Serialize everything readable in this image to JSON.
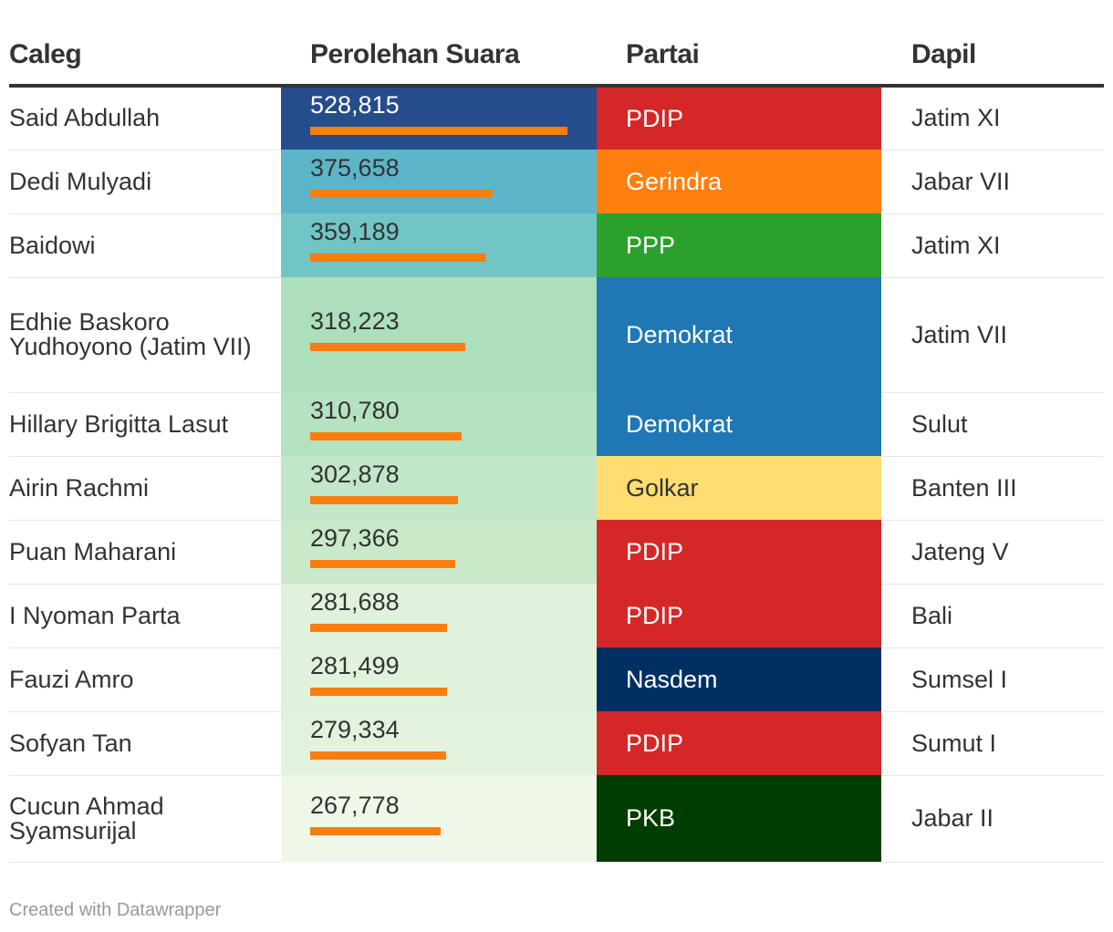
{
  "headers": {
    "caleg": "Caleg",
    "votes": "Perolehan Suara",
    "partai": "Partai",
    "dapil": "Dapil"
  },
  "max_bar_value": 528815,
  "rows": [
    {
      "caleg": "Said Abdullah",
      "votes": 528815,
      "votes_label": "528,815",
      "vote_bg": "#254d8c",
      "vote_fg": "#ffffff",
      "partai": "PDIP",
      "party_bg": "#d62728",
      "party_fg": "#ffffff",
      "dapil": "Jatim XI"
    },
    {
      "caleg": "Dedi Mulyadi",
      "votes": 375658,
      "votes_label": "375,658",
      "vote_bg": "#5db5c8",
      "vote_fg": "#333333",
      "partai": "Gerindra",
      "party_bg": "#ff7f0e",
      "party_fg": "#ffffff",
      "dapil": "Jabar VII"
    },
    {
      "caleg": "Baidowi",
      "votes": 359189,
      "votes_label": "359,189",
      "vote_bg": "#72c5c5",
      "vote_fg": "#333333",
      "partai": "PPP",
      "party_bg": "#2ca02c",
      "party_fg": "#ffffff",
      "dapil": "Jatim XI"
    },
    {
      "caleg": "Edhie Baskoro Yudhoyono (Jatim VII)",
      "votes": 318223,
      "votes_label": "318,223",
      "vote_bg": "#acdfbc",
      "vote_fg": "#333333",
      "partai": "Demokrat",
      "party_bg": "#1f77b4",
      "party_fg": "#ffffff",
      "dapil": "Jatim VII"
    },
    {
      "caleg": "Hillary Brigitta Lasut",
      "votes": 310780,
      "votes_label": "310,780",
      "vote_bg": "#b5e2c1",
      "vote_fg": "#333333",
      "partai": "Demokrat",
      "party_bg": "#1f77b4",
      "party_fg": "#ffffff",
      "dapil": "Sulut"
    },
    {
      "caleg": "Airin Rachmi",
      "votes": 302878,
      "votes_label": "302,878",
      "vote_bg": "#c1e6c8",
      "vote_fg": "#333333",
      "partai": "Golkar",
      "party_bg": "#ffdd71",
      "party_fg": "#333333",
      "dapil": "Banten III"
    },
    {
      "caleg": "Puan Maharani",
      "votes": 297366,
      "votes_label": "297,366",
      "vote_bg": "#c9eac9",
      "vote_fg": "#333333",
      "partai": "PDIP",
      "party_bg": "#d62728",
      "party_fg": "#ffffff",
      "dapil": "Jateng V"
    },
    {
      "caleg": "I Nyoman Parta",
      "votes": 281688,
      "votes_label": "281,688",
      "vote_bg": "#e0f2dc",
      "vote_fg": "#333333",
      "partai": "PDIP",
      "party_bg": "#d62728",
      "party_fg": "#ffffff",
      "dapil": "Bali"
    },
    {
      "caleg": "Fauzi Amro",
      "votes": 281499,
      "votes_label": "281,499",
      "vote_bg": "#e0f2dc",
      "vote_fg": "#333333",
      "partai": "Nasdem",
      "party_bg": "#002f64",
      "party_fg": "#ffffff",
      "dapil": "Sumsel I"
    },
    {
      "caleg": "Sofyan Tan",
      "votes": 279334,
      "votes_label": "279,334",
      "vote_bg": "#e2f2dd",
      "vote_fg": "#333333",
      "partai": "PDIP",
      "party_bg": "#d62728",
      "party_fg": "#ffffff",
      "dapil": "Sumut I"
    },
    {
      "caleg": "Cucun Ahmad Syamsurijal",
      "votes": 267778,
      "votes_label": "267,778",
      "vote_bg": "#eef7e8",
      "vote_fg": "#333333",
      "partai": "PKB",
      "party_bg": "#003d00",
      "party_fg": "#ffffff",
      "dapil": "Jabar II"
    }
  ],
  "footer": "Created with Datawrapper",
  "chart_data": {
    "type": "table",
    "columns": [
      "Caleg",
      "Perolehan Suara",
      "Partai",
      "Dapil"
    ],
    "rows": [
      [
        "Said Abdullah",
        528815,
        "PDIP",
        "Jatim XI"
      ],
      [
        "Dedi Mulyadi",
        375658,
        "Gerindra",
        "Jabar VII"
      ],
      [
        "Baidowi",
        359189,
        "PPP",
        "Jatim XI"
      ],
      [
        "Edhie Baskoro Yudhoyono (Jatim VII)",
        318223,
        "Demokrat",
        "Jatim VII"
      ],
      [
        "Hillary Brigitta Lasut",
        310780,
        "Demokrat",
        "Sulut"
      ],
      [
        "Airin Rachmi",
        302878,
        "Golkar",
        "Banten III"
      ],
      [
        "Puan Maharani",
        297366,
        "PDIP",
        "Jateng V"
      ],
      [
        "I Nyoman Parta",
        281688,
        "PDIP",
        "Bali"
      ],
      [
        "Fauzi Amro",
        281499,
        "Nasdem",
        "Sumsel I"
      ],
      [
        "Sofyan Tan",
        279334,
        "PDIP",
        "Sumut I"
      ],
      [
        "Cucun Ahmad Syamsurijal",
        267778,
        "PKB",
        "Jabar II"
      ]
    ],
    "bar_color": "#fa7d0f"
  }
}
